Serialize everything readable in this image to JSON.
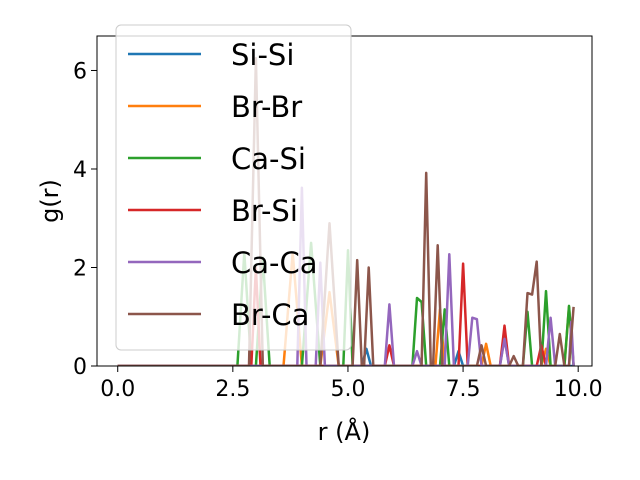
{
  "chart_data": {
    "type": "line",
    "title": "",
    "xlabel": "r (Å)",
    "ylabel": "g(r)",
    "xlim": [
      -0.45,
      10.3
    ],
    "ylim": [
      0,
      6.7
    ],
    "xticks": [
      {
        "value": 0.0,
        "label": "0.0"
      },
      {
        "value": 2.5,
        "label": "2.5"
      },
      {
        "value": 5.0,
        "label": "5.0"
      },
      {
        "value": 7.5,
        "label": "7.5"
      },
      {
        "value": 10.0,
        "label": "10.0"
      }
    ],
    "yticks": [
      {
        "value": 0,
        "label": "0"
      },
      {
        "value": 2,
        "label": "2"
      },
      {
        "value": 4,
        "label": "4"
      },
      {
        "value": 6,
        "label": "6"
      }
    ],
    "grid": false,
    "legend_position": "upper-left",
    "series": [
      {
        "name": "Si-Si",
        "color": "#1f77b4",
        "points": [
          [
            0,
            0
          ],
          [
            5.3,
            0
          ],
          [
            5.4,
            0.35
          ],
          [
            5.5,
            0
          ],
          [
            7.3,
            0
          ],
          [
            7.4,
            0.3
          ],
          [
            7.5,
            0
          ],
          [
            9.9,
            0
          ]
        ]
      },
      {
        "name": "Br-Br",
        "color": "#ff7f0e",
        "points": [
          [
            0,
            0
          ],
          [
            3.6,
            0
          ],
          [
            3.8,
            2.3
          ],
          [
            4.0,
            0
          ],
          [
            4.4,
            0
          ],
          [
            4.6,
            1.5
          ],
          [
            4.8,
            0
          ],
          [
            6.9,
            0
          ],
          [
            7.0,
            1.15
          ],
          [
            7.1,
            0
          ],
          [
            7.9,
            0
          ],
          [
            8.0,
            0.45
          ],
          [
            8.1,
            0
          ],
          [
            9.2,
            0
          ],
          [
            9.3,
            0.35
          ],
          [
            9.4,
            0
          ],
          [
            9.7,
            0
          ],
          [
            9.8,
            1.2
          ],
          [
            9.9,
            0
          ]
        ]
      },
      {
        "name": "Ca-Si",
        "color": "#2ca02c",
        "points": [
          [
            0,
            0
          ],
          [
            2.6,
            0
          ],
          [
            2.75,
            2.3
          ],
          [
            2.9,
            0
          ],
          [
            3.0,
            0
          ],
          [
            3.15,
            2.2
          ],
          [
            3.3,
            0
          ],
          [
            4.0,
            0
          ],
          [
            4.2,
            2.5
          ],
          [
            4.4,
            0
          ],
          [
            4.9,
            0
          ],
          [
            5.0,
            2.35
          ],
          [
            5.1,
            0
          ],
          [
            6.4,
            0
          ],
          [
            6.5,
            1.38
          ],
          [
            6.6,
            1.3
          ],
          [
            6.7,
            0
          ],
          [
            7.0,
            0
          ],
          [
            7.1,
            1.15
          ],
          [
            7.2,
            0
          ],
          [
            8.3,
            0
          ],
          [
            8.4,
            0.6
          ],
          [
            8.5,
            0
          ],
          [
            8.8,
            0
          ],
          [
            8.9,
            1.1
          ],
          [
            9.0,
            0
          ],
          [
            9.2,
            0
          ],
          [
            9.3,
            1.52
          ],
          [
            9.4,
            0
          ],
          [
            9.7,
            0
          ],
          [
            9.8,
            1.22
          ],
          [
            9.9,
            0
          ]
        ]
      },
      {
        "name": "Br-Si",
        "color": "#d62728",
        "points": [
          [
            0,
            0
          ],
          [
            2.9,
            0
          ],
          [
            3.0,
            2.0
          ],
          [
            3.1,
            0
          ],
          [
            5.8,
            0
          ],
          [
            5.9,
            0.42
          ],
          [
            6.0,
            0
          ],
          [
            7.4,
            0
          ],
          [
            7.5,
            2.08
          ],
          [
            7.6,
            0
          ],
          [
            8.3,
            0
          ],
          [
            8.4,
            0.82
          ],
          [
            8.5,
            0
          ],
          [
            9.1,
            0
          ],
          [
            9.2,
            0.42
          ],
          [
            9.3,
            0
          ]
        ]
      },
      {
        "name": "Ca-Ca",
        "color": "#9467bd",
        "points": [
          [
            0,
            0
          ],
          [
            3.9,
            0
          ],
          [
            4.0,
            3.62
          ],
          [
            4.1,
            0
          ],
          [
            4.3,
            0
          ],
          [
            4.4,
            2.1
          ],
          [
            4.5,
            0
          ],
          [
            5.8,
            0
          ],
          [
            5.9,
            1.25
          ],
          [
            6.0,
            0
          ],
          [
            6.4,
            0
          ],
          [
            6.5,
            0.3
          ],
          [
            6.6,
            0
          ],
          [
            7.1,
            0
          ],
          [
            7.2,
            2.27
          ],
          [
            7.3,
            0
          ],
          [
            7.6,
            0
          ],
          [
            7.7,
            0.98
          ],
          [
            7.8,
            0.95
          ],
          [
            7.9,
            0
          ],
          [
            8.3,
            0
          ],
          [
            8.4,
            0.55
          ],
          [
            8.5,
            0
          ],
          [
            9.3,
            0
          ],
          [
            9.4,
            0.98
          ],
          [
            9.5,
            0
          ],
          [
            9.8,
            0
          ],
          [
            9.85,
            0.9
          ],
          [
            9.9,
            0
          ]
        ]
      },
      {
        "name": "Br-Ca",
        "color": "#8c564b",
        "points": [
          [
            0,
            0
          ],
          [
            2.85,
            0
          ],
          [
            3.0,
            6.25
          ],
          [
            3.15,
            0
          ],
          [
            4.4,
            0
          ],
          [
            4.6,
            2.9
          ],
          [
            4.8,
            0
          ],
          [
            5.1,
            0
          ],
          [
            5.2,
            2.15
          ],
          [
            5.3,
            0
          ],
          [
            5.35,
            0
          ],
          [
            5.45,
            2.0
          ],
          [
            5.55,
            0
          ],
          [
            6.6,
            0
          ],
          [
            6.7,
            3.92
          ],
          [
            6.8,
            0
          ],
          [
            6.85,
            0
          ],
          [
            6.95,
            2.45
          ],
          [
            7.05,
            0
          ],
          [
            7.8,
            0
          ],
          [
            7.9,
            0.42
          ],
          [
            8.0,
            0
          ],
          [
            8.5,
            0
          ],
          [
            8.6,
            0.2
          ],
          [
            8.7,
            0
          ],
          [
            8.8,
            0
          ],
          [
            8.9,
            1.48
          ],
          [
            9.0,
            1.45
          ],
          [
            9.1,
            2.12
          ],
          [
            9.2,
            0
          ],
          [
            9.5,
            0
          ],
          [
            9.6,
            0.65
          ],
          [
            9.7,
            0
          ],
          [
            9.8,
            0
          ],
          [
            9.9,
            1.2
          ]
        ]
      }
    ]
  }
}
